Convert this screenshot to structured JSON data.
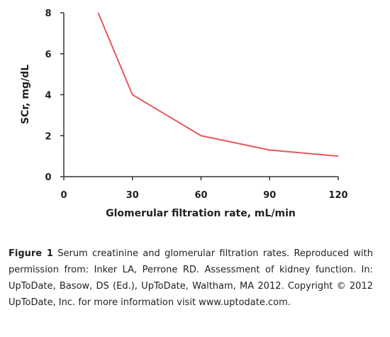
{
  "chart_data": {
    "type": "line",
    "title": "",
    "xlabel": "Glomerular filtration rate, mL/min",
    "ylabel": "SCr, mg/dL",
    "xlim": [
      0,
      120
    ],
    "ylim": [
      0,
      8
    ],
    "xticks": [
      0,
      30,
      60,
      90,
      120
    ],
    "yticks": [
      0,
      2,
      4,
      6,
      8
    ],
    "xtick_labels": [
      "0",
      "30",
      "60",
      "90",
      "120"
    ],
    "ytick_labels": [
      "0",
      "2",
      "4",
      "6",
      "8"
    ],
    "grid": false,
    "legend": "none",
    "series": [
      {
        "x": [
          15,
          30,
          60,
          90,
          120
        ],
        "y": [
          8,
          4,
          2,
          1.3,
          1.0
        ],
        "color": "#e8565f"
      }
    ]
  },
  "caption": {
    "label": "Figure 1",
    "text": "Serum creatinine and glomerular filtration rates. Reproduced with permission from: Inker LA, Perrone RD. Assessment of kidney function. In: UpToDate, Basow, DS (Ed.), UpToDate, Waltham, MA 2012. Copyright © 2012 UpToDate, Inc. for more information visit www.uptodate.com."
  }
}
